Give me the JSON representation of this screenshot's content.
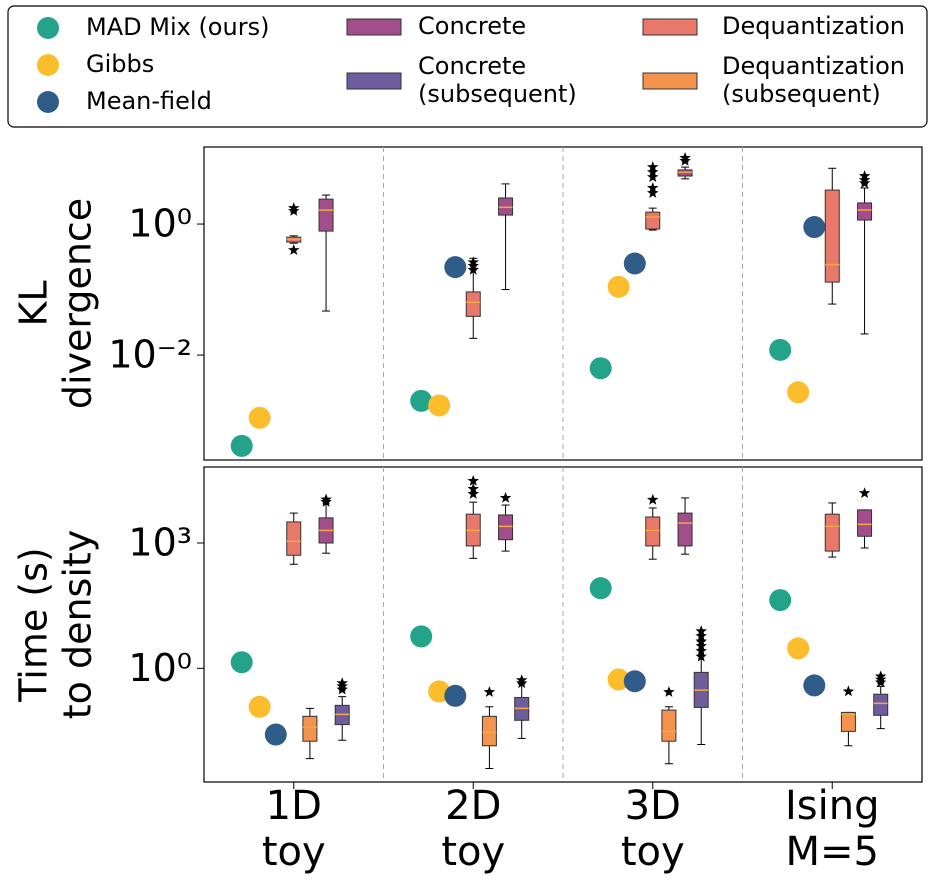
{
  "chart_data": [
    {
      "type": "box",
      "ylabel": [
        "KL",
        "divergence"
      ],
      "log_y": true,
      "ylim": [
        0.00025,
        15
      ],
      "yticks": [
        {
          "value": 1,
          "label": "10⁰"
        },
        {
          "value": 0.01,
          "label": "10⁻²"
        }
      ],
      "series": [
        {
          "color": "#22a38a",
          "kind": "scatter",
          "values": [
            0.00041,
            0.002,
            0.0063,
            0.012
          ]
        },
        {
          "color": "#fbbd2b",
          "kind": "scatter",
          "values": [
            0.0011,
            0.0017,
            0.11,
            0.0027
          ]
        },
        {
          "color": "#2f5c88",
          "kind": "scatter",
          "values": [
            null,
            0.22,
            0.25,
            0.9
          ]
        },
        {
          "color": "#a24e8b",
          "kind": "box",
          "values": [
            {
              "whislo": 0.047,
              "q1": 0.78,
              "med": 1.63,
              "q3": 2.4,
              "whishi": 2.77,
              "fliers": []
            },
            {
              "whislo": 0.1,
              "q1": 1.37,
              "med": 1.8,
              "q3": 2.5,
              "whishi": 4.1,
              "fliers": []
            },
            {
              "whislo": 4.9,
              "q1": 5.4,
              "med": 6.2,
              "q3": 6.7,
              "whishi": 7.4,
              "fliers": [
                10.2,
                9.2
              ]
            },
            {
              "whislo": 0.021,
              "q1": 1.15,
              "med": 1.64,
              "q3": 2.1,
              "whishi": 3.55,
              "fliers": [
                5.4,
                4.7,
                4.2
              ]
            }
          ]
        },
        {
          "color": "#e8796a",
          "kind": "box",
          "values": [
            {
              "whislo": 0.51,
              "q1": 0.53,
              "med": 0.59,
              "q3": 0.63,
              "whishi": 0.66,
              "fliers": [
                1.75,
                1.58,
                0.4
              ]
            },
            {
              "whislo": 0.018,
              "q1": 0.039,
              "med": 0.064,
              "q3": 0.092,
              "whishi": 0.3,
              "fliers": [
                0.26,
                0.23,
                0.2
              ]
            },
            {
              "whislo": 0.81,
              "q1": 0.84,
              "med": 1.28,
              "q3": 1.52,
              "whishi": 1.75,
              "fliers": [
                7.4,
                6.2,
                5.2,
                3.55,
                2.97
              ]
            },
            {
              "whislo": 0.06,
              "q1": 0.13,
              "med": 0.24,
              "q3": 3.3,
              "whishi": 7.1,
              "fliers": []
            }
          ]
        }
      ]
    },
    {
      "type": "box",
      "ylabel": [
        "Time (s)",
        "to density"
      ],
      "log_y": true,
      "categories": [
        [
          "1D",
          "toy"
        ],
        [
          "2D",
          "toy"
        ],
        [
          "3D",
          "toy"
        ],
        [
          "Ising",
          "M=5"
        ]
      ],
      "ylim": [
        0.0019,
        66000
      ],
      "yticks": [
        {
          "value": 1000,
          "label": "10³"
        },
        {
          "value": 1,
          "label": "10⁰"
        }
      ],
      "series": [
        {
          "name": "MAD Mix (ours)",
          "color": "#22a38a",
          "kind": "scatter",
          "values": [
            1.4,
            5.8,
            83,
            43
          ]
        },
        {
          "name": "Gibbs",
          "color": "#fbbd2b",
          "kind": "scatter",
          "values": [
            0.12,
            0.28,
            0.54,
            3.0
          ]
        },
        {
          "name": "Mean-field",
          "color": "#2f5c88",
          "kind": "scatter",
          "values": [
            0.026,
            0.22,
            0.49,
            0.39
          ]
        },
        {
          "name": "Concrete",
          "color": "#a24e8b",
          "kind": "box",
          "values": [
            {
              "whislo": 570,
              "q1": 1000,
              "med": 2000,
              "q3": 4000,
              "whishi": 10000,
              "fliers": [
                11000,
                9600
              ]
            },
            {
              "whislo": 640,
              "q1": 1200,
              "med": 2500,
              "q3": 4700,
              "whishi": 8100,
              "fliers": [
                12000
              ]
            },
            {
              "whislo": 540,
              "q1": 850,
              "med": 3000,
              "q3": 5200,
              "whishi": 12000,
              "fliers": []
            },
            {
              "whislo": 760,
              "q1": 1450,
              "med": 2800,
              "q3": 6200,
              "whishi": 6200,
              "fliers": [
                15600
              ]
            }
          ]
        },
        {
          "name": "Concrete (subsequent)",
          "color": "#6e5c9d",
          "kind": "box",
          "values": [
            {
              "whislo": 0.019,
              "q1": 0.045,
              "med": 0.079,
              "q3": 0.13,
              "whishi": 0.21,
              "fliers": [
                0.44,
                0.37,
                0.31
              ]
            },
            {
              "whislo": 0.021,
              "q1": 0.057,
              "med": 0.11,
              "q3": 0.2,
              "whishi": 0.44,
              "fliers": [
                0.52,
                0.44
              ]
            },
            {
              "whislo": 0.015,
              "q1": 0.116,
              "med": 0.3,
              "q3": 0.8,
              "whishi": 4.4,
              "fliers": [
                7.7,
                5.9,
                4.4,
                3.4,
                2.6,
                1.9
              ]
            },
            {
              "whislo": 0.036,
              "q1": 0.075,
              "med": 0.145,
              "q3": 0.24,
              "whishi": 0.37,
              "fliers": [
                0.64,
                0.54,
                0.46
              ]
            }
          ]
        },
        {
          "name": "Dequantization",
          "color": "#e8796a",
          "kind": "box",
          "values": [
            {
              "whislo": 310,
              "q1": 510,
              "med": 1100,
              "q3": 3200,
              "whishi": 5200,
              "fliers": []
            },
            {
              "whislo": 430,
              "q1": 850,
              "med": 2000,
              "q3": 4900,
              "whishi": 9500,
              "fliers": [
                30600,
                19700,
                14900
              ]
            },
            {
              "whislo": 410,
              "q1": 850,
              "med": 2000,
              "q3": 4200,
              "whishi": 6900,
              "fliers": [
                10800
              ]
            },
            {
              "whislo": 460,
              "q1": 640,
              "med": 2500,
              "q3": 4900,
              "whishi": 9100,
              "fliers": []
            }
          ]
        },
        {
          "name": "Dequantization (subsequent)",
          "color": "#f4934e",
          "kind": "box",
          "values": [
            {
              "whislo": 0.0069,
              "q1": 0.018,
              "med": 0.039,
              "q3": 0.071,
              "whishi": 0.11,
              "fliers": []
            },
            {
              "whislo": 0.004,
              "q1": 0.014,
              "med": 0.029,
              "q3": 0.071,
              "whishi": 0.12,
              "fliers": [
                0.27
              ]
            },
            {
              "whislo": 0.0052,
              "q1": 0.018,
              "med": 0.031,
              "q3": 0.1,
              "whishi": 0.12,
              "fliers": [
                0.27
              ]
            },
            {
              "whislo": 0.014,
              "q1": 0.031,
              "med": 0.079,
              "q3": 0.088,
              "whishi": 0.088,
              "fliers": [
                0.28
              ]
            }
          ]
        }
      ]
    }
  ]
}
